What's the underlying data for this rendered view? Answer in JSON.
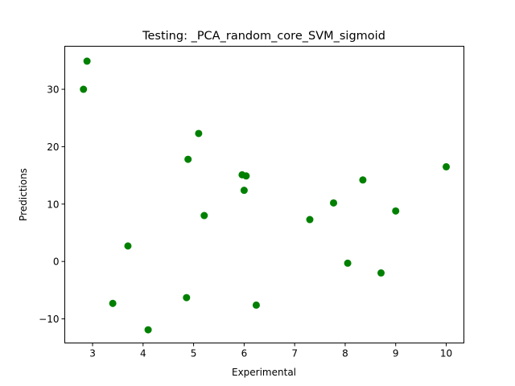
{
  "chart_data": {
    "type": "scatter",
    "title": "Testing: _PCA_random_core_SVM_sigmoid",
    "xlabel": "Experimental",
    "ylabel": "Predictions",
    "xlim": [
      2.45,
      10.35
    ],
    "ylim": [
      -14.2,
      37.5
    ],
    "xticks": [
      "3",
      "4",
      "5",
      "6",
      "7",
      "8",
      "9",
      "10"
    ],
    "xtick_values": [
      3,
      4,
      5,
      6,
      7,
      8,
      9,
      10
    ],
    "yticks": [
      "−10",
      "0",
      "10",
      "20",
      "30"
    ],
    "ytick_values": [
      -10,
      0,
      10,
      20,
      30
    ],
    "grid": false,
    "marker_color": "#008000",
    "series": [
      {
        "points": [
          {
            "x": 2.82,
            "y": 30.0
          },
          {
            "x": 2.89,
            "y": 34.9
          },
          {
            "x": 3.4,
            "y": -7.3
          },
          {
            "x": 3.7,
            "y": 2.7
          },
          {
            "x": 4.1,
            "y": -11.9
          },
          {
            "x": 4.86,
            "y": -6.3
          },
          {
            "x": 4.89,
            "y": 17.8
          },
          {
            "x": 5.1,
            "y": 22.3
          },
          {
            "x": 5.21,
            "y": 8.0
          },
          {
            "x": 5.96,
            "y": 15.1
          },
          {
            "x": 6.0,
            "y": 12.4
          },
          {
            "x": 6.04,
            "y": 14.9
          },
          {
            "x": 6.24,
            "y": -7.6
          },
          {
            "x": 7.3,
            "y": 7.3
          },
          {
            "x": 7.77,
            "y": 10.2
          },
          {
            "x": 8.05,
            "y": -0.3
          },
          {
            "x": 8.35,
            "y": 14.2
          },
          {
            "x": 8.71,
            "y": -2.0
          },
          {
            "x": 9.0,
            "y": 8.8
          },
          {
            "x": 10.0,
            "y": 16.5
          }
        ]
      }
    ]
  }
}
